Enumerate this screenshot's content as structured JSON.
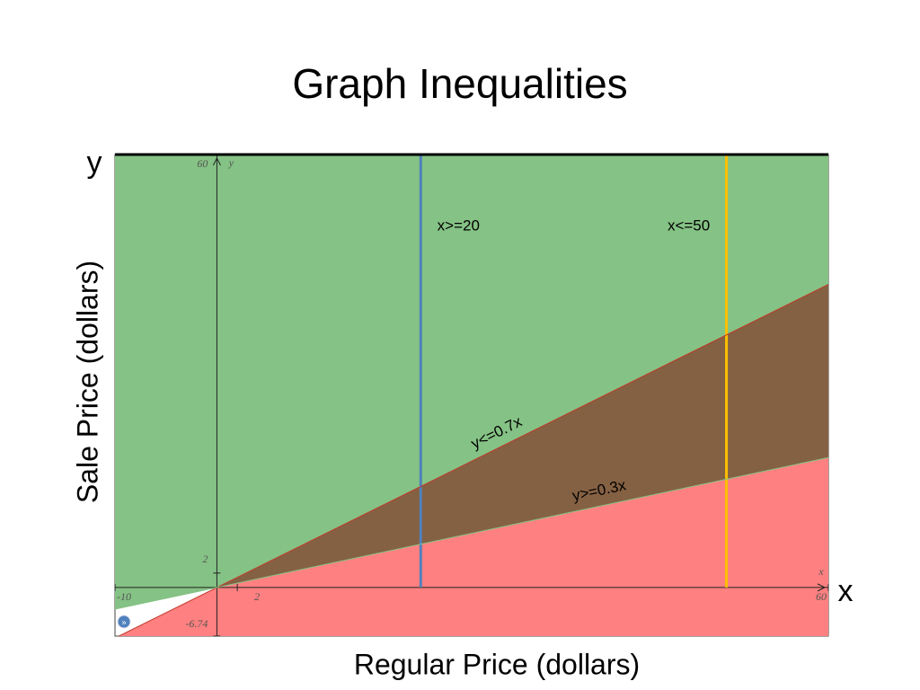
{
  "chart_data": {
    "type": "inequality",
    "title": "Graph Inequalities",
    "x_label": "Regular Price (dollars)",
    "y_label": "Sale Price (dollars)",
    "x_name": "x",
    "y_name": "y",
    "xlim": [
      -10,
      60
    ],
    "ylim": [
      -6.74,
      60
    ],
    "xticks": [
      -10,
      2,
      60
    ],
    "yticks": [
      -6.74,
      2,
      60
    ],
    "series": [
      {
        "name": "x>=20",
        "kind": "vertical",
        "value": 20,
        "color": "#4f81bd"
      },
      {
        "name": "x<=50",
        "kind": "vertical",
        "value": 50,
        "color": "#ffc000"
      },
      {
        "name": "y<=0.7x",
        "kind": "slope",
        "value": 0.7,
        "shade": "below",
        "color": "#c0392b",
        "fill": "#ff8080"
      },
      {
        "name": "y>=0.3x",
        "kind": "slope",
        "value": 0.3,
        "shade": "above",
        "color": "#85c285",
        "fill": "#85c285"
      }
    ]
  }
}
